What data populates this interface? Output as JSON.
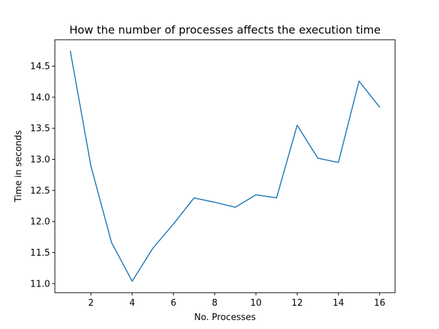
{
  "chart_data": {
    "type": "line",
    "title": "How the number of processes affects the execution time",
    "xlabel": "No. Processes",
    "ylabel": "Time in seconds",
    "x": [
      1,
      2,
      3,
      4,
      5,
      6,
      7,
      8,
      9,
      10,
      11,
      12,
      13,
      14,
      15,
      16
    ],
    "series": [
      {
        "values": [
          14.74,
          12.89,
          11.66,
          11.04,
          11.57,
          11.96,
          12.38,
          12.31,
          12.23,
          12.43,
          12.38,
          13.55,
          13.02,
          12.95,
          14.26,
          13.84
        ],
        "color": "#1f77b4"
      }
    ],
    "xlim": [
      0.25,
      16.75
    ],
    "ylim": [
      10.855,
      14.925
    ],
    "xticks": [
      "2",
      "4",
      "6",
      "8",
      "10",
      "12",
      "14",
      "16"
    ],
    "yticks": [
      "11.0",
      "11.5",
      "12.0",
      "12.5",
      "13.0",
      "13.5",
      "14.0",
      "14.5"
    ],
    "grid": false,
    "legend": "none"
  }
}
